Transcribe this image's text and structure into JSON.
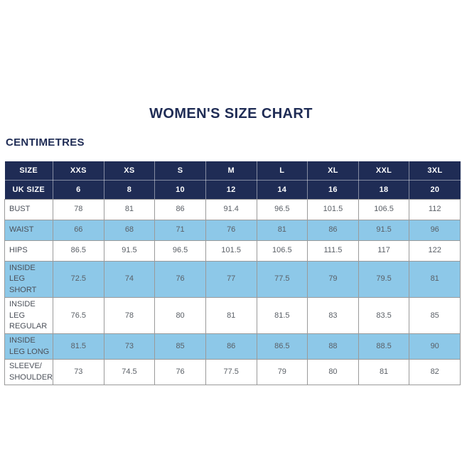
{
  "colors": {
    "navy": "#1f2c55",
    "light_blue": "#8dc8e8",
    "border_gray": "#9a9a9a",
    "body_text": "#5b6067",
    "label_text": "#4b5059"
  },
  "chart_data": {
    "type": "table",
    "title": "WOMEN'S SIZE CHART",
    "unit": "CENTIMETRES",
    "header_rows": [
      {
        "label": "SIZE",
        "values": [
          "XXS",
          "XS",
          "S",
          "M",
          "L",
          "XL",
          "XXL",
          "3XL"
        ]
      },
      {
        "label": "UK SIZE",
        "values": [
          "6",
          "8",
          "10",
          "12",
          "14",
          "16",
          "18",
          "20"
        ]
      }
    ],
    "rows": [
      {
        "label": "BUST",
        "highlight": false,
        "values": [
          "78",
          "81",
          "86",
          "91.4",
          "96.5",
          "101.5",
          "106.5",
          "112"
        ]
      },
      {
        "label": "WAIST",
        "highlight": true,
        "values": [
          "66",
          "68",
          "71",
          "76",
          "81",
          "86",
          "91.5",
          "96"
        ]
      },
      {
        "label": "HIPS",
        "highlight": false,
        "values": [
          "86.5",
          "91.5",
          "96.5",
          "101.5",
          "106.5",
          "111.5",
          "117",
          "122"
        ]
      },
      {
        "label": "INSIDE LEG SHORT",
        "highlight": true,
        "values": [
          "72.5",
          "74",
          "76",
          "77",
          "77.5",
          "79",
          "79.5",
          "81"
        ]
      },
      {
        "label": "INSIDE LEG REGULAR",
        "highlight": false,
        "values": [
          "76.5",
          "78",
          "80",
          "81",
          "81.5",
          "83",
          "83.5",
          "85"
        ]
      },
      {
        "label": "INSIDE LEG LONG",
        "highlight": true,
        "values": [
          "81.5",
          "73",
          "85",
          "86",
          "86.5",
          "88",
          "88.5",
          "90"
        ]
      },
      {
        "label": "SLEEVE/ SHOULDER",
        "highlight": false,
        "values": [
          "73",
          "74.5",
          "76",
          "77.5",
          "79",
          "80",
          "81",
          "82"
        ]
      }
    ]
  }
}
